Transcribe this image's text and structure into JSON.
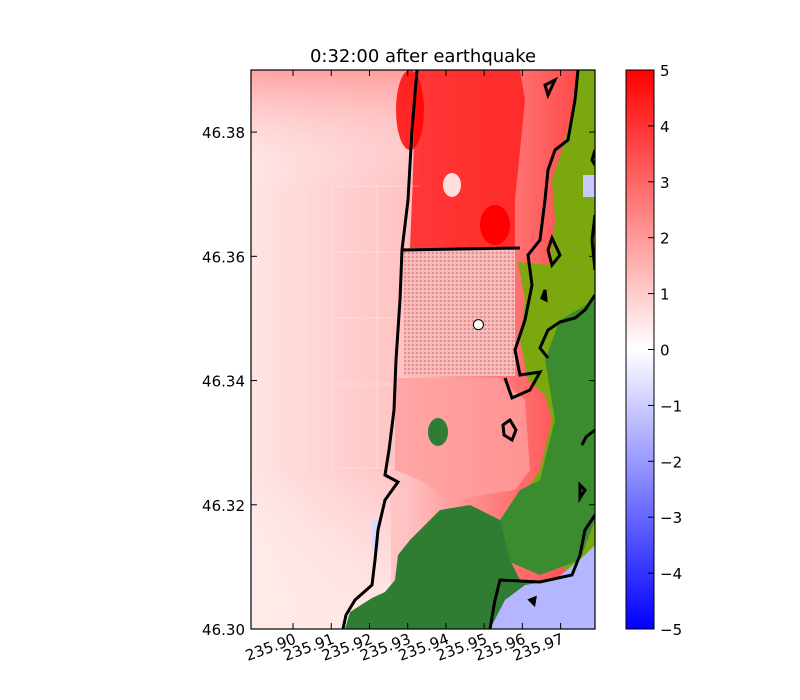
{
  "chart_data": {
    "type": "heatmap",
    "title": "0:32:00 after earthquake",
    "xlabel": "",
    "ylabel": "",
    "xlim": [
      235.889,
      235.979
    ],
    "ylim": [
      46.3,
      46.39
    ],
    "x_ticks": [
      "235.90",
      "235.91",
      "235.92",
      "235.93",
      "235.94",
      "235.95",
      "235.96",
      "235.97"
    ],
    "x_tick_values": [
      235.9,
      235.91,
      235.92,
      235.93,
      235.94,
      235.95,
      235.96,
      235.97
    ],
    "y_ticks": [
      "46.30",
      "46.32",
      "46.34",
      "46.36",
      "46.38"
    ],
    "y_tick_values": [
      46.3,
      46.32,
      46.34,
      46.36,
      46.38
    ],
    "colorbar": {
      "range": [
        -5,
        5
      ],
      "ticks": [
        "5",
        "4",
        "3",
        "2",
        "1",
        "0",
        "−1",
        "−2",
        "−3",
        "−4",
        "−5"
      ],
      "tick_values": [
        5,
        4,
        3,
        2,
        1,
        0,
        -1,
        -2,
        -3,
        -4,
        -5
      ],
      "colormap": [
        "#0000ff",
        "#ffffff",
        "#ff0000"
      ]
    },
    "colors": {
      "land_dry": "#2e7d32",
      "land_low": "#7aa80e",
      "contour": "#000000",
      "water_light": "#ffe6e6",
      "water_strong": "#ff0000"
    },
    "gauge_marker": {
      "lon": 235.9485,
      "lat": 46.349
    },
    "refined_patch": {
      "lon": [
        235.9325,
        235.9525
      ],
      "lat": [
        46.341,
        46.361
      ]
    },
    "grid_on": false,
    "legend": "none"
  }
}
